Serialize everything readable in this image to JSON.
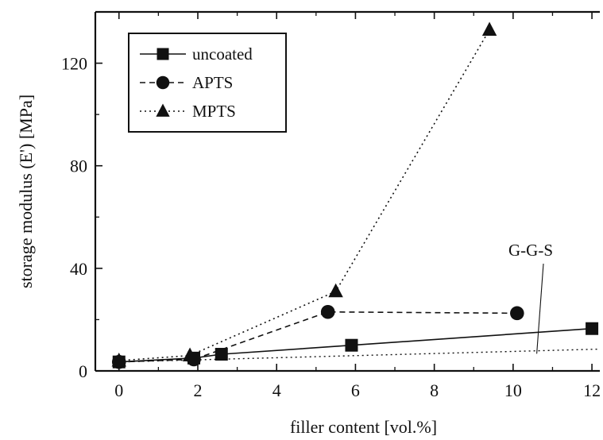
{
  "chart_data": {
    "type": "line",
    "title": "",
    "xlabel": "filler content [vol.%]",
    "ylabel": "storage modulus (E') [MPa]",
    "xlim": [
      -0.6,
      12.2
    ],
    "ylim": [
      0,
      140
    ],
    "xticks": [
      0,
      2,
      4,
      6,
      8,
      10,
      12
    ],
    "yticks": [
      0,
      40,
      80,
      120
    ],
    "grid": false,
    "legend_position": "top-left",
    "series": [
      {
        "name": "uncoated",
        "marker": "square",
        "line": "solid",
        "color": "#111111",
        "x": [
          0,
          1.9,
          2.6,
          5.9,
          12
        ],
        "y": [
          3.5,
          5,
          6.5,
          10,
          16.5
        ]
      },
      {
        "name": "APTS",
        "marker": "circle",
        "line": "dashed",
        "color": "#111111",
        "x": [
          0,
          1.9,
          5.3,
          10.1
        ],
        "y": [
          3.5,
          4.5,
          23,
          22.5
        ]
      },
      {
        "name": "MPTS",
        "marker": "triangle",
        "line": "dotted",
        "color": "#111111",
        "x": [
          0,
          1.8,
          5.5,
          9.4
        ],
        "y": [
          4,
          6,
          31,
          133
        ]
      }
    ],
    "reference_line": {
      "style": "dotted",
      "x": [
        0,
        12.2
      ],
      "y": [
        3.5,
        8.5
      ]
    },
    "annotation": {
      "text": "G-G-S",
      "target": [
        10.6,
        6.7
      ]
    }
  }
}
